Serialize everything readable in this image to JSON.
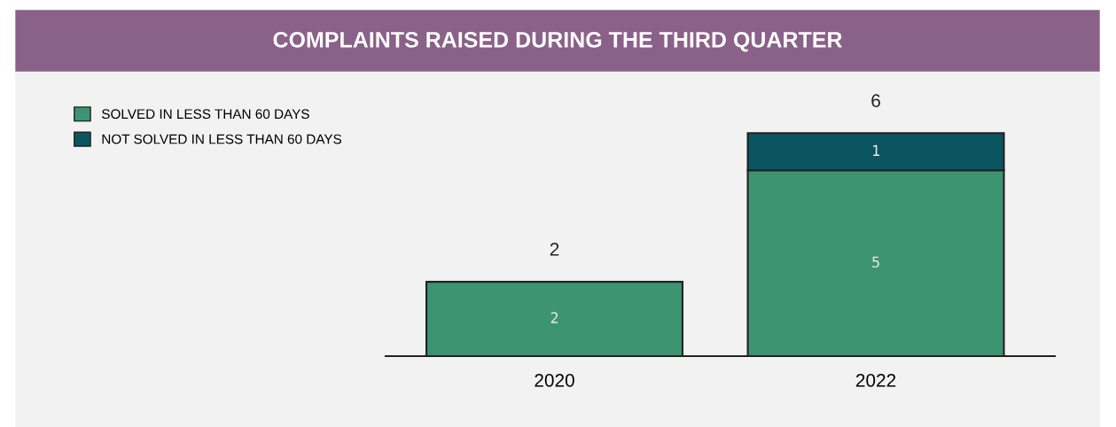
{
  "chart_data": {
    "type": "bar",
    "title": "COMPLAINTS RAISED DURING THE THIRD QUARTER",
    "categories": [
      "2020",
      "2022"
    ],
    "stacked": true,
    "legend": "top left",
    "series": [
      {
        "name": "SOLVED IN LESS THAN 60 DAYS",
        "color": "#3d9470",
        "values": [
          2,
          5
        ],
        "value_labels": [
          "2",
          "5"
        ]
      },
      {
        "name": "NOT SOLVED IN LESS THAN 60 DAYS",
        "color": "#0b5560",
        "values": [
          null,
          1
        ],
        "value_labels": [
          null,
          "1"
        ]
      }
    ],
    "totals": [
      "2",
      "6"
    ]
  }
}
